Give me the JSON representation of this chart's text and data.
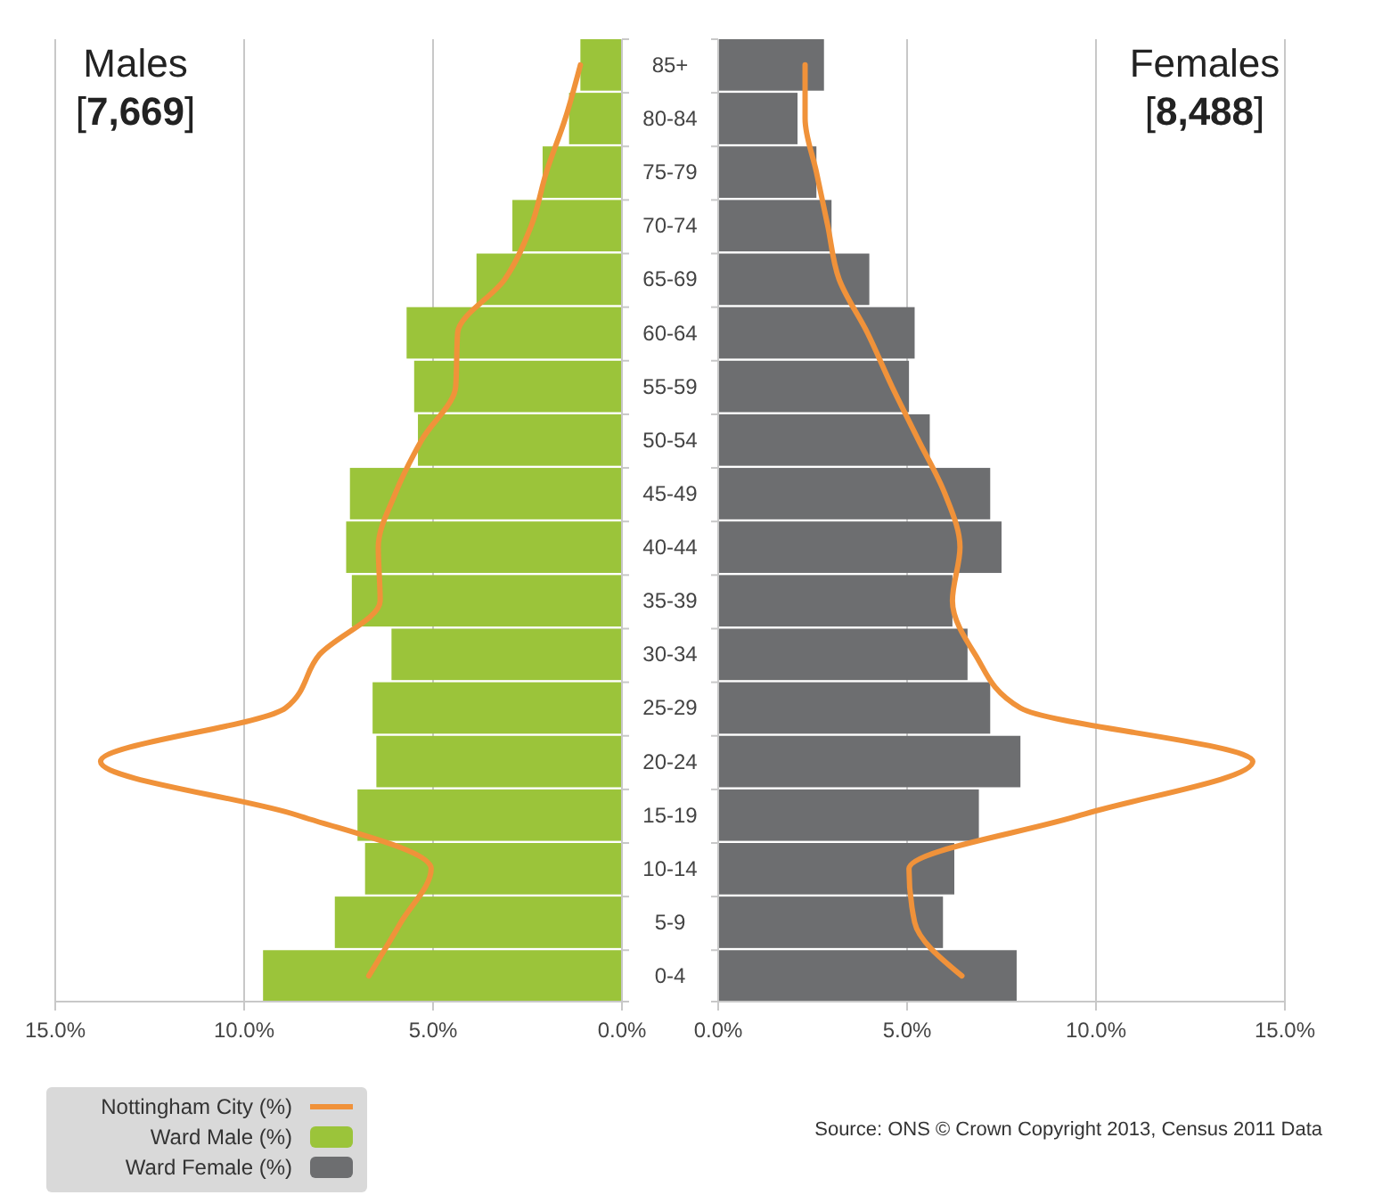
{
  "chart_data": [
    {
      "type": "bar",
      "orientation": "horizontal",
      "title": "Males",
      "subtitle": "[7,669]",
      "categories": [
        "85+",
        "80-84",
        "75-79",
        "70-74",
        "65-69",
        "60-64",
        "55-59",
        "50-54",
        "45-49",
        "40-44",
        "35-39",
        "30-34",
        "25-29",
        "20-24",
        "15-19",
        "10-14",
        "5-9",
        "0-4"
      ],
      "series": [
        {
          "name": "Nottingham City (%)",
          "type": "line",
          "color": "#f0923a",
          "values": [
            1.1,
            1.5,
            2.0,
            2.4,
            3.1,
            4.35,
            4.4,
            5.3,
            6.0,
            6.45,
            6.4,
            8.0,
            8.9,
            13.8,
            8.6,
            5.05,
            5.85,
            6.7
          ]
        },
        {
          "name": "Ward Male (%)",
          "type": "bar",
          "color": "#9bc43a",
          "values": [
            1.1,
            1.4,
            2.1,
            2.9,
            3.85,
            5.7,
            5.5,
            5.4,
            7.2,
            7.3,
            7.15,
            6.1,
            6.6,
            6.5,
            7.0,
            6.8,
            7.6,
            9.5
          ]
        }
      ],
      "xlim": [
        15,
        0
      ],
      "xticks": [
        {
          "value": 15,
          "label": "15.0%"
        },
        {
          "value": 10,
          "label": "10.0%"
        },
        {
          "value": 5,
          "label": "5.0%"
        },
        {
          "value": 0,
          "label": "0.0%"
        }
      ],
      "grid": "x",
      "legend": "bottom left",
      "line_style": "solid",
      "marker": "none"
    },
    {
      "type": "bar",
      "orientation": "horizontal",
      "title": "Females",
      "subtitle": "[8,488]",
      "categories": [
        "85+",
        "80-84",
        "75-79",
        "70-74",
        "65-69",
        "60-64",
        "55-59",
        "50-54",
        "45-49",
        "40-44",
        "35-39",
        "30-34",
        "25-29",
        "20-24",
        "15-19",
        "10-14",
        "5-9",
        "0-4"
      ],
      "series": [
        {
          "type": "line",
          "color": "#f0923a",
          "values": [
            2.3,
            2.3,
            2.6,
            2.9,
            3.2,
            3.95,
            4.6,
            5.3,
            6.0,
            6.4,
            6.2,
            6.8,
            8.0,
            14.15,
            9.6,
            5.05,
            5.2,
            6.45
          ]
        },
        {
          "name": "Ward Female (%)",
          "type": "bar",
          "color": "#6d6e70",
          "values": [
            2.8,
            2.1,
            2.6,
            3.0,
            4.0,
            5.2,
            5.05,
            5.6,
            7.2,
            7.5,
            6.2,
            6.6,
            7.2,
            8.0,
            6.9,
            6.25,
            5.95,
            7.9
          ]
        }
      ],
      "xlim": [
        0,
        15
      ],
      "xticks": [
        {
          "value": 0,
          "label": "0.0%"
        },
        {
          "value": 5,
          "label": "5.0%"
        },
        {
          "value": 10,
          "label": "10.0%"
        },
        {
          "value": 15,
          "label": "15.0%"
        }
      ],
      "grid": "x",
      "legend": "bottom left",
      "tick_labels": "x",
      "line_style": "solid",
      "marker": "none",
      "annotations": [
        "Source: ONS © Crown Copyright 2013, Census 2011 Data"
      ]
    }
  ]
}
